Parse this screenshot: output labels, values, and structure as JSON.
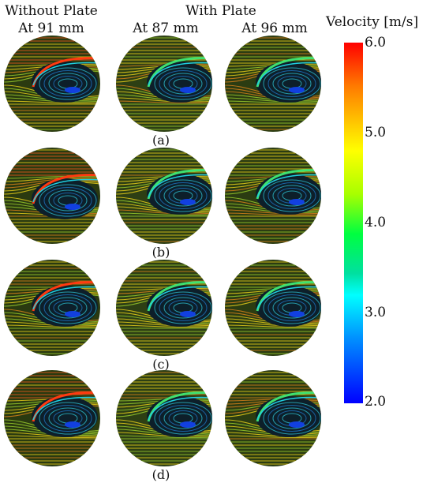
{
  "headers": {
    "without_plate": "Without Plate",
    "with_plate": "With Plate",
    "col1_position": "At 91 mm",
    "col2_position": "At 87 mm",
    "col3_position": "At 96 mm"
  },
  "row_labels": [
    "(a)",
    "(b)",
    "(c)",
    "(d)"
  ],
  "colorbar": {
    "title": "Velocity [m/s]",
    "max": 6.0,
    "min": 2.0,
    "ticks": [
      "6.0",
      "5.0",
      "4.0",
      "3.0",
      "2.0"
    ],
    "colors": [
      "#ff0000",
      "#ffff00",
      "#00ff40",
      "#00ffff",
      "#0000ff"
    ]
  }
}
